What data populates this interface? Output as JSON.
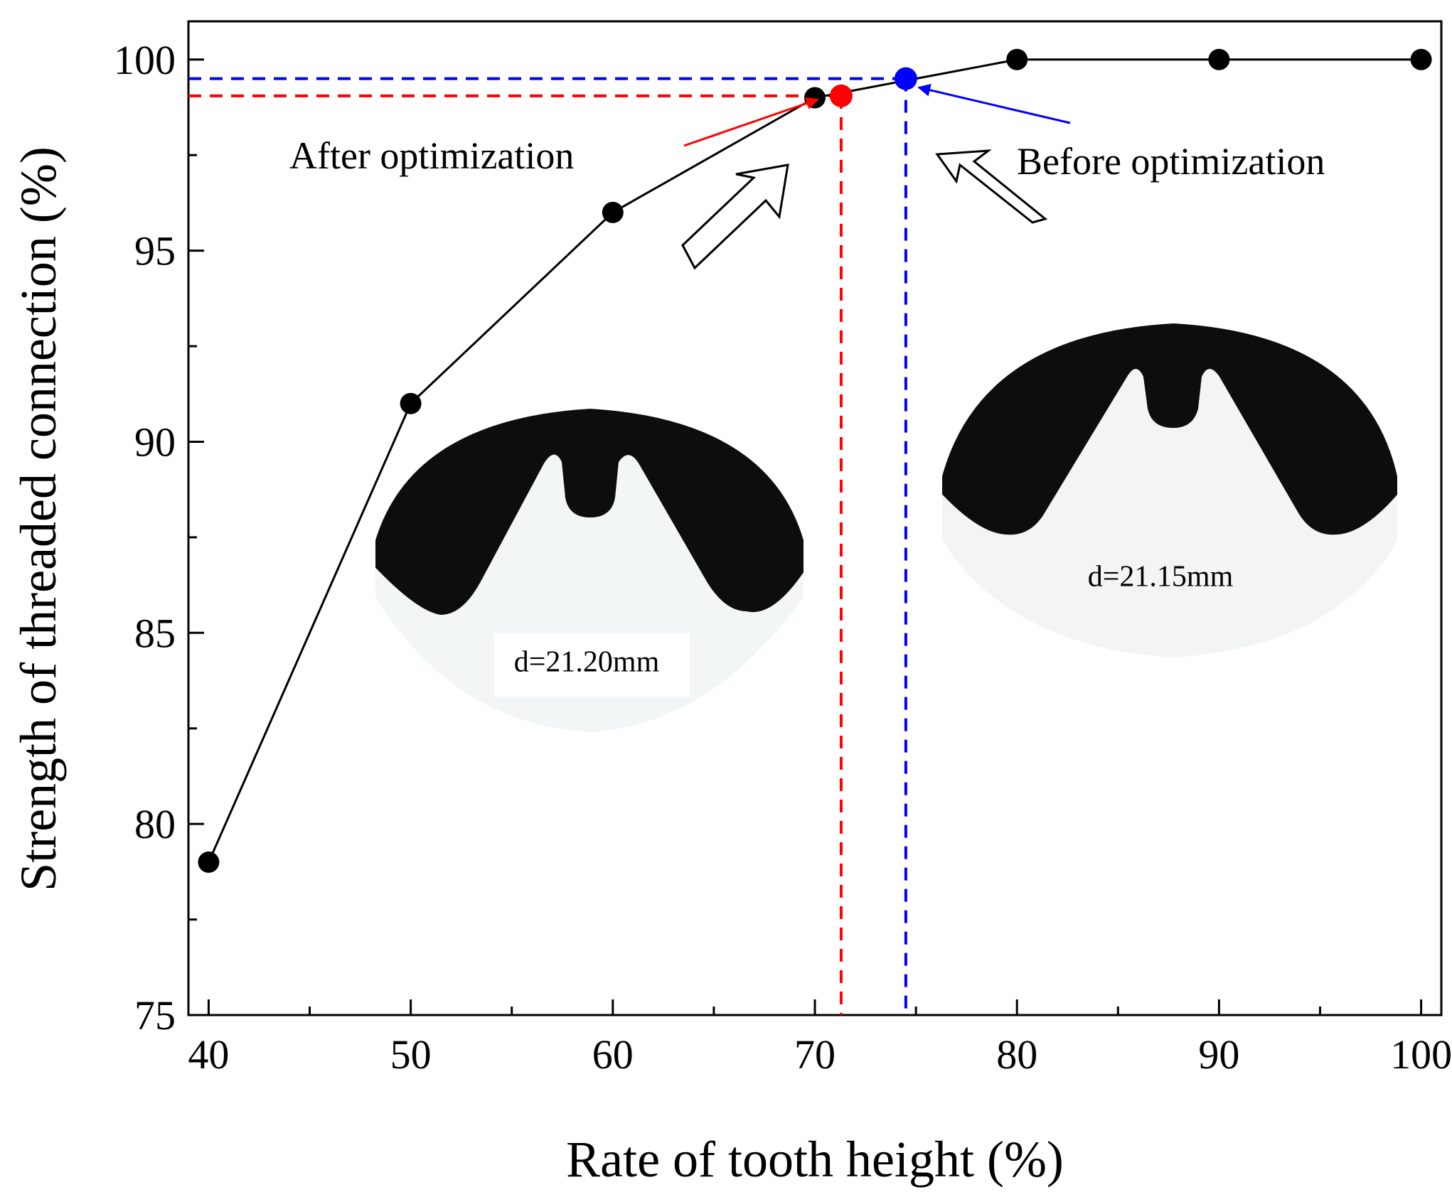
{
  "chart_data": {
    "type": "line",
    "title": "",
    "xlabel": "Rate of tooth height (%)",
    "ylabel": "Strength of threaded connection (%)",
    "xlim": [
      39,
      101
    ],
    "ylim": [
      75,
      101
    ],
    "x_ticks": [
      40,
      50,
      60,
      70,
      80,
      90,
      100
    ],
    "y_ticks": [
      75,
      80,
      85,
      90,
      95,
      100
    ],
    "x_minor_ticks": [
      45,
      55,
      65,
      75,
      85,
      95
    ],
    "y_minor_ticks": [
      77.5,
      82.5,
      87.5,
      92.5,
      97.5
    ],
    "grid": false,
    "series": [
      {
        "name": "Strength",
        "color": "#000000",
        "x": [
          40,
          50,
          60,
          70,
          80,
          90,
          100
        ],
        "y": [
          79,
          91,
          96,
          99,
          100,
          100,
          100
        ]
      }
    ],
    "highlights": [
      {
        "name": "After optimization",
        "x": 71.3,
        "y": 99.05,
        "color": "#ff0000"
      },
      {
        "name": "Before optimization",
        "x": 74.5,
        "y": 99.5,
        "color": "#0000ff"
      }
    ],
    "annotations": [
      {
        "text": "After optimization"
      },
      {
        "text": "Before optimization"
      }
    ],
    "insets": [
      {
        "label": "d=21.20mm"
      },
      {
        "label": "d=21.15mm"
      }
    ]
  }
}
